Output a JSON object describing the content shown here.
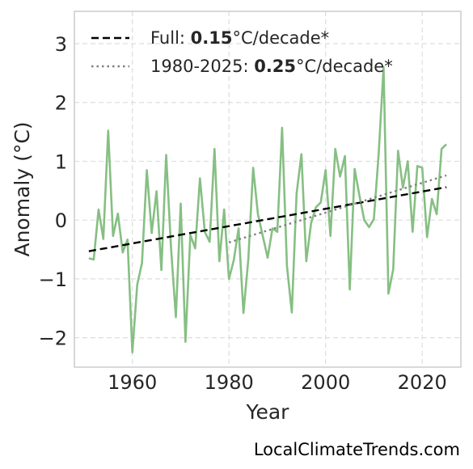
{
  "chart_data": {
    "type": "line",
    "xlabel": "Year",
    "ylabel": "Anomaly (°C)",
    "xlim": [
      1948,
      2028
    ],
    "ylim": [
      -2.5,
      3.55
    ],
    "xticks": [
      1960,
      1980,
      2000,
      2020
    ],
    "yticks": [
      3,
      2,
      1,
      0,
      -1,
      -2
    ],
    "ytick_labels": [
      "3",
      "2",
      "1",
      "0",
      "−1",
      "−2"
    ],
    "grid": true,
    "legend_position": "top-left",
    "series": [
      {
        "style": "solid",
        "color": "#86bf83",
        "x": [
          1951,
          1952,
          1953,
          1954,
          1955,
          1956,
          1957,
          1958,
          1959,
          1960,
          1961,
          1962,
          1963,
          1964,
          1965,
          1966,
          1967,
          1968,
          1969,
          1970,
          1971,
          1972,
          1973,
          1974,
          1975,
          1976,
          1977,
          1978,
          1979,
          1980,
          1981,
          1982,
          1983,
          1984,
          1985,
          1986,
          1987,
          1988,
          1989,
          1990,
          1991,
          1992,
          1993,
          1994,
          1995,
          1996,
          1997,
          1998,
          1999,
          2000,
          2001,
          2002,
          2003,
          2004,
          2005,
          2006,
          2007,
          2008,
          2009,
          2010,
          2011,
          2012,
          2013,
          2014,
          2015,
          2016,
          2017,
          2018,
          2019,
          2020,
          2021,
          2022,
          2023,
          2024,
          2025
        ],
        "y": [
          -0.65,
          -0.67,
          0.18,
          -0.32,
          1.52,
          -0.27,
          0.11,
          -0.55,
          -0.33,
          -2.25,
          -1.1,
          -0.73,
          0.85,
          -0.22,
          0.49,
          -0.85,
          1.11,
          -0.47,
          -1.65,
          0.28,
          -2.07,
          -0.25,
          -0.48,
          0.71,
          -0.2,
          -0.37,
          1.21,
          -0.7,
          0.18,
          -1.0,
          -0.68,
          -0.14,
          -1.58,
          -0.67,
          0.89,
          0.1,
          -0.27,
          -0.64,
          -0.14,
          -0.2,
          1.57,
          -0.78,
          -1.57,
          0.45,
          1.12,
          -0.7,
          -0.05,
          0.22,
          0.3,
          0.85,
          -0.27,
          1.21,
          0.74,
          1.09,
          -1.18,
          0.87,
          0.42,
          0.0,
          -0.12,
          0.02,
          1.14,
          2.6,
          -1.25,
          -0.84,
          1.18,
          0.55,
          1.0,
          -0.2,
          0.92,
          0.89,
          -0.29,
          0.36,
          0.1,
          1.21,
          1.29
        ]
      },
      {
        "name": "Full",
        "style": "dashed",
        "color": "#000000",
        "x": [
          1951,
          2025
        ],
        "y": [
          -0.53,
          0.56
        ],
        "trend_value": "0.15",
        "trend_unit": "°C/decade*"
      },
      {
        "name": "1980-2025",
        "style": "dotted",
        "color": "#808080",
        "x": [
          1980,
          2025
        ],
        "y": [
          -0.38,
          0.76
        ],
        "trend_value": "0.25",
        "trend_unit": "°C/decade*"
      }
    ]
  },
  "credit": "LocalClimateTrends.com"
}
